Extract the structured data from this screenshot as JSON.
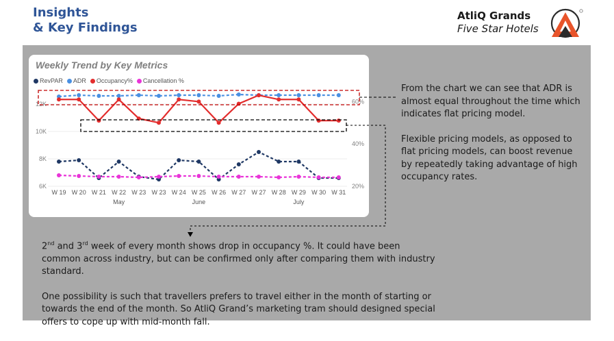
{
  "header": {
    "title_line1": "Insights",
    "title_line2": "& Key Findings",
    "brand_name": "AtliQ Grands",
    "brand_subtitle": "Five Star Hotels"
  },
  "chart_title": "Weekly Trend by Key Metrics",
  "chart_data": {
    "type": "line",
    "title": "Weekly Trend by Key Metrics",
    "categories": [
      "W 19",
      "W 20",
      "W 21",
      "W 22",
      "W 23",
      "W 23",
      "W 24",
      "W 25",
      "W 26",
      "W 27",
      "W 27",
      "W 28",
      "W 29",
      "W 30",
      "W 31"
    ],
    "months": [
      {
        "label": "May",
        "center_index": 3
      },
      {
        "label": "June",
        "center_index": 7
      },
      {
        "label": "July",
        "center_index": 12
      }
    ],
    "left_axis": {
      "ticks": [
        "6K",
        "8K",
        "10K",
        "12K"
      ],
      "range": [
        6000,
        12800
      ]
    },
    "right_axis": {
      "ticks": [
        "20%",
        "40%",
        "60%"
      ],
      "range": [
        20,
        64
      ]
    },
    "legend_position": "top-left",
    "series": [
      {
        "name": "RevPAR",
        "color": "#1f3864",
        "axis": "left",
        "style": "dashed",
        "values": [
          7800,
          7900,
          6600,
          7800,
          6700,
          6500,
          7900,
          7800,
          6500,
          7600,
          8500,
          7800,
          7800,
          6600,
          6600
        ]
      },
      {
        "name": "ADR",
        "color": "#4a90e2",
        "axis": "left",
        "style": "dashed",
        "values": [
          12550,
          12650,
          12600,
          12600,
          12650,
          12600,
          12650,
          12650,
          12600,
          12700,
          12650,
          12650,
          12650,
          12650,
          12650
        ]
      },
      {
        "name": "Occupancy%",
        "color": "#e32d2d",
        "axis": "right",
        "style": "solid",
        "values": [
          61,
          61,
          51,
          61,
          52,
          50,
          61,
          60,
          50,
          59,
          63,
          61,
          61,
          51,
          51
        ]
      },
      {
        "name": "Cancellation %",
        "color": "#e934d8",
        "axis": "left",
        "style": "dashed",
        "values": [
          6800,
          6750,
          6700,
          6700,
          6650,
          6700,
          6750,
          6750,
          6700,
          6700,
          6700,
          6650,
          6700,
          6650,
          6650
        ]
      }
    ]
  },
  "notes": {
    "right_p1": "From the chart we can see that ADR is almost equal throughout the time which indicates flat pricing model.",
    "right_p2": "Flexible pricing models, as opposed to flat pricing models, can boost revenue by repeatedly taking advantage of high occupancy rates.",
    "bottom_2nd_num": "2",
    "bottom_2nd_sup": "nd",
    "bottom_and": " and ",
    "bottom_3rd_num": "3",
    "bottom_3rd_sup": "rd",
    "bottom_p1_rest": " week of every month shows drop in occupancy %. It could have been common across industry, but can be confirmed only after comparing them with industry standard.",
    "bottom_p2": "One possibility is such that travellers prefers to travel either in the month of starting or towards the end of the month. So AtliQ Grand’s marketing tram should designed special offers to cope up with mid-month fall."
  }
}
